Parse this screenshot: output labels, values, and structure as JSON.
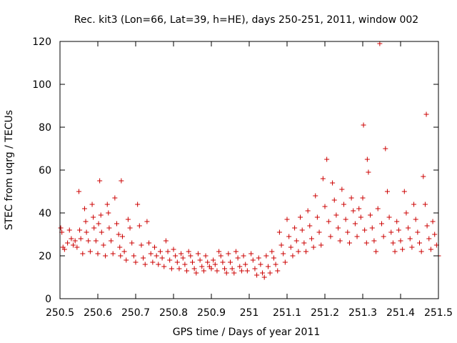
{
  "chart_data": {
    "type": "scatter",
    "title": "Rec. kit3 (Lon=66, Lat=39, h=HE), days 250-251, 2011, window 002",
    "xlabel": "GPS time / Days of year 2011",
    "ylabel": "STEC from uqrg / TECUs",
    "xlim": [
      250.5,
      251.5
    ],
    "ylim": [
      0,
      120
    ],
    "x_ticks": [
      250.5,
      250.6,
      250.7,
      250.8,
      250.9,
      251.0,
      251.1,
      251.2,
      251.3,
      251.4,
      251.5
    ],
    "x_tick_labels": [
      "250.5",
      "250.6",
      "250.7",
      "250.8",
      "250.9",
      "251",
      "251.1",
      "251.2",
      "251.3",
      "251.4",
      "251.5"
    ],
    "y_ticks": [
      0,
      20,
      40,
      60,
      80,
      100,
      120
    ],
    "y_tick_labels": [
      "0",
      "20",
      "40",
      "60",
      "80",
      "100",
      "120"
    ],
    "marker": "+",
    "marker_color": "#cc0000",
    "series": [
      {
        "name": "STEC",
        "points": [
          [
            250.502,
            33
          ],
          [
            250.505,
            31
          ],
          [
            250.508,
            24
          ],
          [
            250.512,
            23
          ],
          [
            250.52,
            26
          ],
          [
            250.525,
            32
          ],
          [
            250.53,
            28
          ],
          [
            250.535,
            25
          ],
          [
            250.54,
            27
          ],
          [
            250.545,
            24
          ],
          [
            250.55,
            50
          ],
          [
            250.552,
            32
          ],
          [
            250.555,
            28
          ],
          [
            250.56,
            21
          ],
          [
            250.565,
            42
          ],
          [
            250.568,
            36
          ],
          [
            250.57,
            31
          ],
          [
            250.575,
            27
          ],
          [
            250.58,
            22
          ],
          [
            250.585,
            44
          ],
          [
            250.588,
            38
          ],
          [
            250.59,
            33
          ],
          [
            250.595,
            27
          ],
          [
            250.6,
            21
          ],
          [
            250.602,
            35
          ],
          [
            250.605,
            55
          ],
          [
            250.608,
            39
          ],
          [
            250.61,
            31
          ],
          [
            250.615,
            25
          ],
          [
            250.62,
            20
          ],
          [
            250.625,
            44
          ],
          [
            250.628,
            40
          ],
          [
            250.63,
            33
          ],
          [
            250.635,
            27
          ],
          [
            250.64,
            21
          ],
          [
            250.645,
            47
          ],
          [
            250.65,
            35
          ],
          [
            250.655,
            30
          ],
          [
            250.658,
            24
          ],
          [
            250.66,
            20
          ],
          [
            250.662,
            55
          ],
          [
            250.665,
            29
          ],
          [
            250.67,
            22
          ],
          [
            250.675,
            18
          ],
          [
            250.68,
            37
          ],
          [
            250.685,
            33
          ],
          [
            250.69,
            26
          ],
          [
            250.695,
            20
          ],
          [
            250.7,
            17
          ],
          [
            250.705,
            44
          ],
          [
            250.71,
            34
          ],
          [
            250.715,
            25
          ],
          [
            250.72,
            19
          ],
          [
            250.725,
            16
          ],
          [
            250.73,
            36
          ],
          [
            250.735,
            26
          ],
          [
            250.74,
            21
          ],
          [
            250.745,
            17
          ],
          [
            250.75,
            24
          ],
          [
            250.755,
            20
          ],
          [
            250.76,
            16
          ],
          [
            250.765,
            22
          ],
          [
            250.77,
            19
          ],
          [
            250.775,
            15
          ],
          [
            250.78,
            27
          ],
          [
            250.785,
            22
          ],
          [
            250.79,
            18
          ],
          [
            250.795,
            14
          ],
          [
            250.8,
            23
          ],
          [
            250.805,
            20
          ],
          [
            250.81,
            17
          ],
          [
            250.815,
            14
          ],
          [
            250.82,
            21
          ],
          [
            250.825,
            19
          ],
          [
            250.83,
            16
          ],
          [
            250.835,
            13
          ],
          [
            250.84,
            22
          ],
          [
            250.845,
            20
          ],
          [
            250.85,
            17
          ],
          [
            250.855,
            14
          ],
          [
            250.86,
            12
          ],
          [
            250.865,
            21
          ],
          [
            250.87,
            18
          ],
          [
            250.875,
            15
          ],
          [
            250.88,
            13
          ],
          [
            250.885,
            20
          ],
          [
            250.89,
            17
          ],
          [
            250.895,
            15
          ],
          [
            250.9,
            14
          ],
          [
            250.905,
            18
          ],
          [
            250.91,
            16
          ],
          [
            250.915,
            13
          ],
          [
            250.92,
            22
          ],
          [
            250.925,
            20
          ],
          [
            250.93,
            17
          ],
          [
            250.935,
            14
          ],
          [
            250.94,
            12
          ],
          [
            250.945,
            21
          ],
          [
            250.95,
            17
          ],
          [
            250.955,
            14
          ],
          [
            250.96,
            12
          ],
          [
            250.965,
            22
          ],
          [
            250.97,
            19
          ],
          [
            250.975,
            15
          ],
          [
            250.98,
            13
          ],
          [
            250.985,
            20
          ],
          [
            250.99,
            16
          ],
          [
            250.995,
            13
          ],
          [
            251.005,
            21
          ],
          [
            251.01,
            18
          ],
          [
            251.015,
            14
          ],
          [
            251.02,
            11
          ],
          [
            251.025,
            19
          ],
          [
            251.03,
            16
          ],
          [
            251.035,
            12
          ],
          [
            251.04,
            10
          ],
          [
            251.045,
            20
          ],
          [
            251.05,
            15
          ],
          [
            251.055,
            12
          ],
          [
            251.06,
            22
          ],
          [
            251.065,
            19
          ],
          [
            251.07,
            16
          ],
          [
            251.075,
            13
          ],
          [
            251.08,
            31
          ],
          [
            251.085,
            25
          ],
          [
            251.09,
            21
          ],
          [
            251.095,
            17
          ],
          [
            251.1,
            37
          ],
          [
            251.105,
            29
          ],
          [
            251.11,
            24
          ],
          [
            251.115,
            20
          ],
          [
            251.12,
            33
          ],
          [
            251.125,
            27
          ],
          [
            251.13,
            22
          ],
          [
            251.135,
            38
          ],
          [
            251.14,
            32
          ],
          [
            251.145,
            26
          ],
          [
            251.15,
            22
          ],
          [
            251.155,
            41
          ],
          [
            251.16,
            34
          ],
          [
            251.165,
            28
          ],
          [
            251.17,
            24
          ],
          [
            251.175,
            48
          ],
          [
            251.18,
            38
          ],
          [
            251.185,
            31
          ],
          [
            251.19,
            25
          ],
          [
            251.195,
            56
          ],
          [
            251.2,
            43
          ],
          [
            251.205,
            65
          ],
          [
            251.21,
            36
          ],
          [
            251.215,
            29
          ],
          [
            251.22,
            54
          ],
          [
            251.225,
            46
          ],
          [
            251.23,
            39
          ],
          [
            251.235,
            33
          ],
          [
            251.24,
            27
          ],
          [
            251.245,
            51
          ],
          [
            251.25,
            44
          ],
          [
            251.255,
            37
          ],
          [
            251.26,
            31
          ],
          [
            251.265,
            26
          ],
          [
            251.27,
            47
          ],
          [
            251.275,
            41
          ],
          [
            251.28,
            35
          ],
          [
            251.285,
            29
          ],
          [
            251.29,
            42
          ],
          [
            251.295,
            38
          ],
          [
            251.3,
            47
          ],
          [
            251.302,
            81
          ],
          [
            251.305,
            32
          ],
          [
            251.31,
            26
          ],
          [
            251.312,
            65
          ],
          [
            251.315,
            59
          ],
          [
            251.32,
            39
          ],
          [
            251.325,
            33
          ],
          [
            251.33,
            27
          ],
          [
            251.335,
            22
          ],
          [
            251.34,
            42
          ],
          [
            251.345,
            119
          ],
          [
            251.35,
            35
          ],
          [
            251.355,
            29
          ],
          [
            251.36,
            70
          ],
          [
            251.365,
            50
          ],
          [
            251.37,
            38
          ],
          [
            251.375,
            31
          ],
          [
            251.38,
            26
          ],
          [
            251.385,
            22
          ],
          [
            251.39,
            36
          ],
          [
            251.395,
            32
          ],
          [
            251.4,
            27
          ],
          [
            251.405,
            23
          ],
          [
            251.41,
            50
          ],
          [
            251.415,
            40
          ],
          [
            251.42,
            33
          ],
          [
            251.425,
            28
          ],
          [
            251.43,
            24
          ],
          [
            251.435,
            44
          ],
          [
            251.44,
            37
          ],
          [
            251.445,
            31
          ],
          [
            251.45,
            26
          ],
          [
            251.455,
            22
          ],
          [
            251.46,
            57
          ],
          [
            251.465,
            44
          ],
          [
            251.468,
            86
          ],
          [
            251.47,
            34
          ],
          [
            251.475,
            28
          ],
          [
            251.48,
            23
          ],
          [
            251.485,
            36
          ],
          [
            251.49,
            30
          ],
          [
            251.495,
            25
          ],
          [
            251.5,
            20
          ]
        ]
      }
    ]
  }
}
